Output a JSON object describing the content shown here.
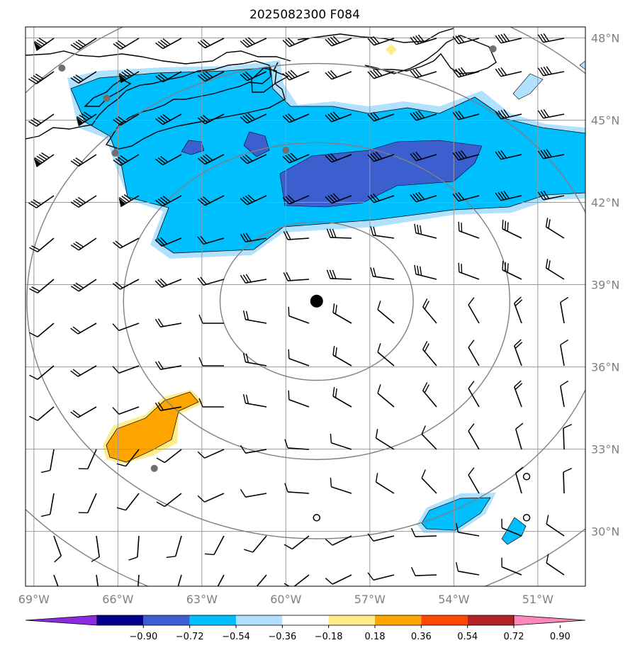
{
  "title": "2025082300 F084",
  "map": {
    "lon_range": [
      -69.3,
      -49.3
    ],
    "lat_range": [
      28.0,
      48.4
    ],
    "lon_ticks": [
      {
        "value": -69,
        "label": "69°W"
      },
      {
        "value": -66,
        "label": "66°W"
      },
      {
        "value": -63,
        "label": "63°W"
      },
      {
        "value": -60,
        "label": "60°W"
      },
      {
        "value": -57,
        "label": "57°W"
      },
      {
        "value": -54,
        "label": "54°W"
      },
      {
        "value": -51,
        "label": "51°W"
      }
    ],
    "lat_ticks": [
      {
        "value": 48,
        "label": "48°N"
      },
      {
        "value": 45,
        "label": "45°N"
      },
      {
        "value": 42,
        "label": "42°N"
      },
      {
        "value": 39,
        "label": "39°N"
      },
      {
        "value": 36,
        "label": "36°N"
      },
      {
        "value": 33,
        "label": "33°N"
      },
      {
        "value": 30,
        "label": "30°N"
      }
    ],
    "storm_center": {
      "lon": -58.9,
      "lat": 38.4
    },
    "range_rings_deg_lon": [
      3.45,
      6.9,
      10.35,
      13.8
    ],
    "stations": [
      {
        "lon": -68.0,
        "lat": 46.9
      },
      {
        "lon": -66.4,
        "lat": 45.8
      },
      {
        "lon": -66.1,
        "lat": 43.8
      },
      {
        "lon": -60.0,
        "lat": 43.9
      },
      {
        "lon": -52.6,
        "lat": 47.6
      },
      {
        "lon": -64.7,
        "lat": 32.3
      }
    ],
    "open_circles": [
      {
        "lon": -58.9,
        "lat": 30.5
      },
      {
        "lon": -51.4,
        "lat": 32.0
      },
      {
        "lon": -51.4,
        "lat": 30.5
      }
    ]
  },
  "colorbar": {
    "labels": [
      "−0.90",
      "−0.72",
      "−0.54",
      "−0.36",
      "−0.18",
      "0.18",
      "0.36",
      "0.54",
      "0.72",
      "0.90"
    ],
    "colors": [
      "#8a2be2",
      "#00008b",
      "#3c5fd0",
      "#00bfff",
      "#b0e2ff",
      "#ffffff",
      "#ffec8b",
      "#ffa500",
      "#ff4500",
      "#b22222",
      "#ff88bb"
    ]
  }
}
